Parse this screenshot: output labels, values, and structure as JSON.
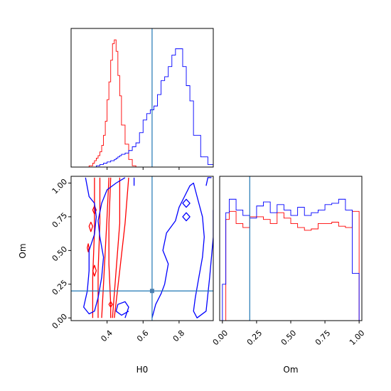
{
  "chart_data": {
    "type": "corner",
    "parameters": [
      "H0",
      "Om"
    ],
    "truth": {
      "H0": 0.65,
      "Om": 0.2
    },
    "colors": {
      "series_a": "#ff0000",
      "series_b": "#0000ff",
      "truth": "#1f77b4"
    },
    "panels": [
      {
        "id": "hist-H0",
        "type": "step-histogram",
        "xlim": [
          0.2,
          0.99
        ],
        "bins": [
          0.2,
          0.24,
          0.28,
          0.3,
          0.32,
          0.33,
          0.34,
          0.35,
          0.36,
          0.37,
          0.38,
          0.39,
          0.4,
          0.41,
          0.42,
          0.43,
          0.44,
          0.45,
          0.46,
          0.47,
          0.48,
          0.5,
          0.52,
          0.54,
          0.56,
          0.58,
          0.6,
          0.62,
          0.64,
          0.66,
          0.68,
          0.7,
          0.72,
          0.74,
          0.76,
          0.78,
          0.8,
          0.82,
          0.84,
          0.86,
          0.88,
          0.92,
          0.96,
          0.99
        ],
        "series": [
          {
            "color": "series_a",
            "values": [
              0,
              0,
              0,
              0.01,
              0.03,
              0.05,
              0.07,
              0.09,
              0.12,
              0.17,
              0.25,
              0.36,
              0.53,
              0.67,
              0.84,
              0.97,
              1.0,
              0.91,
              0.72,
              0.56,
              0.33,
              0.18,
              0.06,
              0.01,
              0,
              0,
              0,
              0,
              0,
              0,
              0,
              0,
              0,
              0,
              0,
              0,
              0,
              0,
              0,
              0,
              0,
              0,
              0
            ]
          },
          {
            "color": "series_b",
            "values": [
              0,
              0,
              0,
              0,
              0,
              0,
              0.01,
              0.01,
              0.02,
              0.02,
              0.03,
              0.03,
              0.04,
              0.04,
              0.05,
              0.05,
              0.06,
              0.07,
              0.08,
              0.09,
              0.1,
              0.11,
              0.13,
              0.16,
              0.19,
              0.27,
              0.37,
              0.42,
              0.45,
              0.48,
              0.57,
              0.68,
              0.71,
              0.79,
              0.88,
              0.93,
              0.93,
              0.79,
              0.64,
              0.52,
              0.25,
              0.08,
              0.02
            ]
          }
        ]
      },
      {
        "id": "hist-Om",
        "type": "step-histogram",
        "xlim": [
          -0.02,
          1.02
        ],
        "xticks": [
          "0.00",
          "0.25",
          "0.50",
          "0.75",
          "1.00"
        ],
        "bins": [
          0,
          0.025,
          0.05,
          0.1,
          0.15,
          0.2,
          0.25,
          0.3,
          0.35,
          0.4,
          0.45,
          0.5,
          0.55,
          0.6,
          0.65,
          0.7,
          0.75,
          0.8,
          0.85,
          0.9,
          0.95,
          1.0
        ],
        "series": [
          {
            "color": "series_a",
            "values": [
              0,
              0.75,
              0.81,
              0.72,
              0.69,
              0.77,
              0.77,
              0.75,
              0.72,
              0.8,
              0.76,
              0.72,
              0.69,
              0.67,
              0.68,
              0.72,
              0.72,
              0.73,
              0.7,
              0.69,
              0.81
            ]
          },
          {
            "color": "series_b",
            "values": [
              0.27,
              0.8,
              0.9,
              0.82,
              0.78,
              0.76,
              0.85,
              0.88,
              0.8,
              0.86,
              0.82,
              0.78,
              0.84,
              0.78,
              0.8,
              0.82,
              0.86,
              0.87,
              0.9,
              0.82,
              0.35
            ]
          }
        ]
      },
      {
        "id": "contour-H0-Om",
        "type": "contour",
        "xlim": [
          0.2,
          0.99
        ],
        "ylim": [
          -0.02,
          1.05
        ],
        "xticks": [
          "0.4",
          "0.6",
          "0.8"
        ],
        "yticks": [
          "0.00",
          "0.25",
          "0.50",
          "0.75",
          "1.00"
        ],
        "contours": [
          {
            "color": "series_a",
            "points": [
              [
                0.47,
                1.04
              ],
              [
                0.47,
                0.7
              ],
              [
                0.45,
                0.35
              ],
              [
                0.43,
                0.0
              ]
            ]
          },
          {
            "color": "series_a",
            "points": [
              [
                0.52,
                1.04
              ],
              [
                0.5,
                0.7
              ],
              [
                0.47,
                0.35
              ],
              [
                0.44,
                0.0
              ]
            ]
          },
          {
            "color": "series_a",
            "points": [
              [
                0.36,
                1.04
              ],
              [
                0.36,
                0.7
              ],
              [
                0.35,
                0.35
              ],
              [
                0.35,
                0.0
              ]
            ]
          },
          {
            "color": "series_a",
            "points": [
              [
                0.41,
                1.04
              ],
              [
                0.4,
                0.75
              ],
              [
                0.39,
                0.5
              ],
              [
                0.38,
                0.25
              ],
              [
                0.37,
                0.0
              ]
            ]
          },
          {
            "color": "series_a",
            "points": [
              [
                0.33,
                1.04
              ],
              [
                0.33,
                0.65
              ],
              [
                0.32,
                0.3
              ],
              [
                0.32,
                0.0
              ]
            ]
          },
          {
            "color": "series_a",
            "points": [
              [
                0.42,
                1.04
              ],
              [
                0.41,
                0.7
              ],
              [
                0.41,
                0.4
              ],
              [
                0.42,
                0.1
              ],
              [
                0.42,
                0.0
              ]
            ]
          },
          {
            "color": "series_a",
            "closed": true,
            "points": [
              [
                0.29,
                0.52
              ],
              [
                0.295,
                0.55
              ],
              [
                0.3,
                0.52
              ],
              [
                0.295,
                0.49
              ]
            ]
          },
          {
            "color": "series_a",
            "closed": true,
            "points": [
              [
                0.3,
                0.68
              ],
              [
                0.31,
                0.71
              ],
              [
                0.32,
                0.68
              ],
              [
                0.31,
                0.64
              ]
            ]
          },
          {
            "color": "series_a",
            "closed": true,
            "points": [
              [
                0.32,
                0.8
              ],
              [
                0.33,
                0.83
              ],
              [
                0.34,
                0.8
              ],
              [
                0.33,
                0.77
              ]
            ]
          },
          {
            "color": "series_a",
            "closed": true,
            "points": [
              [
                0.32,
                0.35
              ],
              [
                0.33,
                0.39
              ],
              [
                0.34,
                0.35
              ],
              [
                0.33,
                0.31
              ]
            ]
          },
          {
            "color": "series_a",
            "closed": true,
            "points": [
              [
                0.41,
                0.1
              ],
              [
                0.42,
                0.12
              ],
              [
                0.43,
                0.1
              ],
              [
                0.42,
                0.08
              ]
            ]
          },
          {
            "color": "series_b",
            "points": [
              [
                0.28,
                1.04
              ],
              [
                0.3,
                0.9
              ],
              [
                0.33,
                0.85
              ],
              [
                0.34,
                0.75
              ],
              [
                0.33,
                0.62
              ],
              [
                0.3,
                0.5
              ],
              [
                0.3,
                0.35
              ],
              [
                0.29,
                0.2
              ],
              [
                0.27,
                0.08
              ],
              [
                0.3,
                0.03
              ],
              [
                0.33,
                0.05
              ],
              [
                0.35,
                0.15
              ],
              [
                0.37,
                0.3
              ],
              [
                0.38,
                0.45
              ],
              [
                0.36,
                0.6
              ],
              [
                0.35,
                0.72
              ],
              [
                0.37,
                0.85
              ],
              [
                0.4,
                0.95
              ],
              [
                0.45,
                1.0
              ],
              [
                0.5,
                1.04
              ]
            ]
          },
          {
            "color": "series_b",
            "points": [
              [
                0.5,
                0.0
              ],
              [
                0.52,
                0.08
              ],
              [
                0.5,
                0.12
              ],
              [
                0.46,
                0.1
              ],
              [
                0.45,
                0.05
              ],
              [
                0.48,
                0.02
              ],
              [
                0.52,
                0.05
              ]
            ]
          },
          {
            "color": "series_b",
            "points": [
              [
                0.65,
                0.0
              ],
              [
                0.67,
                0.1
              ],
              [
                0.7,
                0.18
              ],
              [
                0.72,
                0.25
              ],
              [
                0.74,
                0.4
              ],
              [
                0.71,
                0.5
              ],
              [
                0.73,
                0.63
              ],
              [
                0.78,
                0.72
              ],
              [
                0.8,
                0.82
              ],
              [
                0.83,
                0.9
              ],
              [
                0.86,
                0.98
              ],
              [
                0.88,
                1.0
              ],
              [
                0.9,
                0.9
              ],
              [
                0.93,
                0.75
              ],
              [
                0.94,
                0.6
              ],
              [
                0.93,
                0.45
              ],
              [
                0.91,
                0.3
              ],
              [
                0.89,
                0.15
              ],
              [
                0.88,
                0.05
              ],
              [
                0.9,
                0.0
              ],
              [
                0.95,
                0.05
              ],
              [
                0.97,
                0.3
              ],
              [
                0.99,
                0.6
              ],
              [
                0.99,
                0.8
              ]
            ]
          },
          {
            "color": "series_b",
            "closed": true,
            "points": [
              [
                0.82,
                0.75
              ],
              [
                0.84,
                0.78
              ],
              [
                0.86,
                0.75
              ],
              [
                0.84,
                0.72
              ]
            ]
          },
          {
            "color": "series_b",
            "closed": true,
            "points": [
              [
                0.82,
                0.85
              ],
              [
                0.84,
                0.88
              ],
              [
                0.86,
                0.85
              ],
              [
                0.84,
                0.82
              ]
            ]
          },
          {
            "color": "series_b",
            "points": [
              [
                0.95,
                0.98
              ],
              [
                0.96,
                1.04
              ],
              [
                0.98,
                1.04
              ]
            ]
          },
          {
            "color": "series_b",
            "points": [
              [
                0.55,
                1.04
              ],
              [
                0.55,
                0.98
              ]
            ]
          }
        ]
      }
    ],
    "xlabel_left": "H0",
    "xlabel_right": "Om",
    "ylabel_bottom": "Om"
  }
}
